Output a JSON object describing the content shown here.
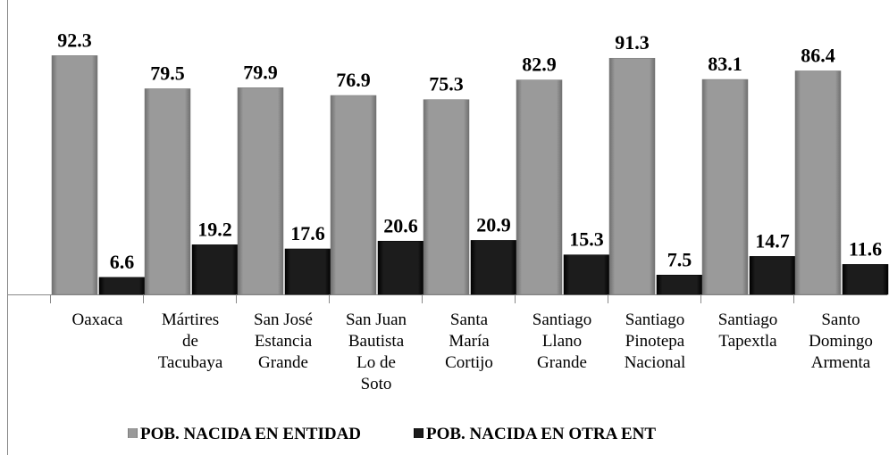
{
  "chart_data": {
    "type": "bar",
    "categories": [
      "Oaxaca",
      "Mártires\nde\nTacubaya",
      "San José\nEstancia\nGrande",
      "San Juan\nBautista\nLo de\nSoto",
      "Santa\nMaría\nCortijo",
      "Santiago\nLlano\nGrande",
      "Santiago\nPinotepa\nNacional",
      "Santiago\nTapextla",
      "Santo\nDomingo\nArmenta"
    ],
    "series": [
      {
        "name": "POB. NACIDA EN ENTIDAD",
        "color": "#9a9a9a",
        "values": [
          92.3,
          79.5,
          79.9,
          76.9,
          75.3,
          82.9,
          91.3,
          83.1,
          86.4
        ]
      },
      {
        "name": "POB. NACIDA EN OTRA ENT",
        "color": "#141414",
        "values": [
          6.6,
          19.2,
          17.6,
          20.6,
          20.9,
          15.3,
          7.5,
          14.7,
          11.6
        ]
      }
    ]
  }
}
